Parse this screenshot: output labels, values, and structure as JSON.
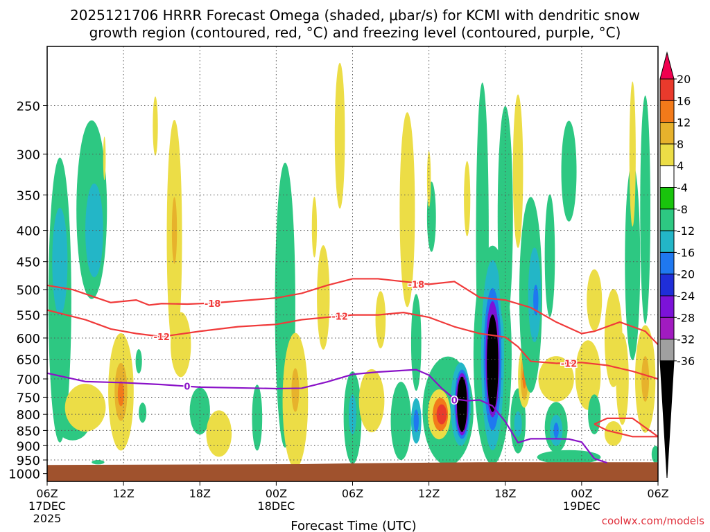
{
  "title_line1": "2025121706 HRRR Forecast Omega (shaded, μbar/s) for KCMI with dendritic snow",
  "title_line2": "growth region (contoured, red, °C) and freezing level (contoured, purple, °C)",
  "xlabel": "Forecast Time (UTC)",
  "credit": "coolwx.com/models",
  "chart_data": {
    "type": "heatmap",
    "x_unit": "forecast hour",
    "x_range": [
      0,
      48
    ],
    "y_unit": "hPa",
    "y_range": [
      200,
      1030
    ],
    "y_ticks": [
      {
        "p": 250,
        "label": "250"
      },
      {
        "p": 300,
        "label": "300"
      },
      {
        "p": 350,
        "label": "350"
      },
      {
        "p": 400,
        "label": "400"
      },
      {
        "p": 450,
        "label": "450"
      },
      {
        "p": 500,
        "label": "500"
      },
      {
        "p": 550,
        "label": "550"
      },
      {
        "p": 600,
        "label": "600"
      },
      {
        "p": 650,
        "label": "650"
      },
      {
        "p": 700,
        "label": "700"
      },
      {
        "p": 750,
        "label": "750"
      },
      {
        "p": 800,
        "label": "800"
      },
      {
        "p": 850,
        "label": "850"
      },
      {
        "p": 900,
        "label": "900"
      },
      {
        "p": 950,
        "label": "950"
      },
      {
        "p": 1000,
        "label": "1000"
      }
    ],
    "x_ticks": [
      {
        "h": 0,
        "label": "06Z",
        "sub": "17DEC",
        "sub2": "2025"
      },
      {
        "h": 6,
        "label": "12Z"
      },
      {
        "h": 12,
        "label": "18Z"
      },
      {
        "h": 18,
        "label": "00Z",
        "sub": "18DEC"
      },
      {
        "h": 24,
        "label": "06Z"
      },
      {
        "h": 30,
        "label": "12Z"
      },
      {
        "h": 36,
        "label": "18Z"
      },
      {
        "h": 42,
        "label": "00Z",
        "sub": "19DEC"
      },
      {
        "h": 48,
        "label": "06Z"
      }
    ],
    "colorbar": {
      "levels": [
        "20",
        "16",
        "12",
        "8",
        "4",
        "-4",
        "-8",
        "-12",
        "-16",
        "-20",
        "-24",
        "-28",
        "-32",
        "-36"
      ],
      "colors": [
        "#f0004f",
        "#e93a2c",
        "#f27a1a",
        "#e7b22c",
        "#ecdd46",
        "#ffffff",
        "#19c40c",
        "#2dc882",
        "#23b6c7",
        "#1f78f0",
        "#1f2ed8",
        "#7c12d8",
        "#a11bc0",
        "#a0a0a0",
        "#000000"
      ]
    },
    "ground": {
      "surface_pressure_hPa": [
        [
          0,
          968
        ],
        [
          20,
          965
        ],
        [
          24,
          962
        ],
        [
          34,
          958
        ],
        [
          40,
          958
        ],
        [
          48,
          958
        ]
      ],
      "color": "#a0522d"
    },
    "freezing_level": {
      "label": "0",
      "color": "#8a12c8",
      "points": [
        [
          0,
          685
        ],
        [
          3,
          707
        ],
        [
          6,
          710
        ],
        [
          9,
          715
        ],
        [
          12,
          722
        ],
        [
          15,
          724
        ],
        [
          18,
          726
        ],
        [
          20,
          725
        ],
        [
          22,
          708
        ],
        [
          24,
          688
        ],
        [
          26,
          682
        ],
        [
          28,
          678
        ],
        [
          29,
          676
        ],
        [
          30,
          690
        ],
        [
          31,
          725
        ],
        [
          32,
          755
        ],
        [
          33,
          760
        ],
        [
          34,
          758
        ],
        [
          35,
          775
        ],
        [
          36,
          822
        ],
        [
          37,
          890
        ],
        [
          38,
          877
        ],
        [
          40,
          877
        ],
        [
          41,
          878
        ],
        [
          42,
          888
        ],
        [
          43,
          945
        ],
        [
          44,
          960
        ]
      ],
      "label_at": [
        [
          11,
          719
        ],
        [
          32,
          758
        ]
      ]
    },
    "isotherms": [
      {
        "label": "-18",
        "color": "#f03a3a",
        "points": [
          [
            0,
            492
          ],
          [
            2,
            500
          ],
          [
            5,
            525
          ],
          [
            7,
            520
          ],
          [
            8,
            530
          ],
          [
            9,
            527
          ],
          [
            11,
            528
          ],
          [
            13,
            526
          ],
          [
            16,
            520
          ],
          [
            18,
            516
          ],
          [
            20,
            507
          ],
          [
            22,
            492
          ],
          [
            24,
            480
          ],
          [
            26,
            480
          ],
          [
            28,
            485
          ],
          [
            30,
            490
          ],
          [
            32,
            485
          ],
          [
            34,
            515
          ],
          [
            36,
            520
          ],
          [
            38,
            535
          ],
          [
            40,
            565
          ],
          [
            42,
            590
          ],
          [
            43,
            585
          ],
          [
            45,
            565
          ],
          [
            47,
            585
          ],
          [
            48,
            615
          ]
        ],
        "label_at": [
          [
            13,
            527
          ],
          [
            29,
            490
          ]
        ]
      },
      {
        "label": "-12",
        "color": "#f03a3a",
        "points": [
          [
            0,
            540
          ],
          [
            3,
            560
          ],
          [
            5,
            580
          ],
          [
            7,
            590
          ],
          [
            9,
            597
          ],
          [
            12,
            585
          ],
          [
            15,
            575
          ],
          [
            18,
            570
          ],
          [
            20,
            560
          ],
          [
            22,
            555
          ],
          [
            24,
            550
          ],
          [
            26,
            550
          ],
          [
            28,
            545
          ],
          [
            30,
            555
          ],
          [
            32,
            575
          ],
          [
            34,
            590
          ],
          [
            36,
            598
          ],
          [
            37,
            620
          ],
          [
            38,
            655
          ],
          [
            40,
            660
          ],
          [
            42,
            658
          ],
          [
            44,
            665
          ],
          [
            46,
            680
          ],
          [
            48,
            700
          ]
        ],
        "label_at": [
          [
            9,
            597
          ],
          [
            23,
            553
          ],
          [
            41,
            660
          ]
        ]
      },
      {
        "label": "",
        "color": "#f03a3a",
        "points": [
          [
            43,
            830
          ],
          [
            44,
            812
          ],
          [
            46,
            812
          ],
          [
            48,
            870
          ]
        ]
      },
      {
        "label": "",
        "color": "#f03a3a",
        "points": [
          [
            43,
            830
          ],
          [
            44,
            850
          ],
          [
            46,
            870
          ],
          [
            48,
            870
          ]
        ]
      }
    ],
    "omega_blobs": [
      {
        "value": -8,
        "h": 1.0,
        "p": 520,
        "rh": 0.9,
        "rp": 255
      },
      {
        "value": -12,
        "h": 1.0,
        "p": 450,
        "rh": 0.6,
        "rp": 90
      },
      {
        "value": -8,
        "h": 3.5,
        "p": 370,
        "rh": 1.2,
        "rp": 120
      },
      {
        "value": -12,
        "h": 3.7,
        "p": 400,
        "rh": 0.7,
        "rp": 70
      },
      {
        "value": -8,
        "h": 2.0,
        "p": 820,
        "rh": 1.4,
        "rp": 60
      },
      {
        "value": 4,
        "h": 3.0,
        "p": 780,
        "rh": 1.6,
        "rp": 70
      },
      {
        "value": 4,
        "h": 5.8,
        "p": 735,
        "rh": 1.0,
        "rp": 160
      },
      {
        "value": 8,
        "h": 5.8,
        "p": 735,
        "rh": 0.5,
        "rp": 80
      },
      {
        "value": 12,
        "h": 5.8,
        "p": 740,
        "rh": 0.25,
        "rp": 35
      },
      {
        "value": 4,
        "h": 8.5,
        "p": 270,
        "rh": 0.2,
        "rp": 30
      },
      {
        "value": 4,
        "h": 4.5,
        "p": 305,
        "rh": 0.1,
        "rp": 25
      },
      {
        "value": -8,
        "h": 7.2,
        "p": 655,
        "rh": 0.25,
        "rp": 30
      },
      {
        "value": -8,
        "h": 7.5,
        "p": 795,
        "rh": 0.3,
        "rp": 30
      },
      {
        "value": 4,
        "h": 10.0,
        "p": 410,
        "rh": 0.6,
        "rp": 170
      },
      {
        "value": 8,
        "h": 10.0,
        "p": 400,
        "rh": 0.2,
        "rp": 50
      },
      {
        "value": 4,
        "h": 10.5,
        "p": 615,
        "rh": 0.8,
        "rp": 75
      },
      {
        "value": -8,
        "h": 12.0,
        "p": 790,
        "rh": 0.8,
        "rp": 70
      },
      {
        "value": 4,
        "h": 13.5,
        "p": 860,
        "rh": 1.0,
        "rp": 75
      },
      {
        "value": -8,
        "h": 16.5,
        "p": 810,
        "rh": 0.4,
        "rp": 100
      },
      {
        "value": -8,
        "h": 18.7,
        "p": 530,
        "rh": 0.8,
        "rp": 260
      },
      {
        "value": 4,
        "h": 19.5,
        "p": 760,
        "rh": 1.0,
        "rp": 190
      },
      {
        "value": 8,
        "h": 19.5,
        "p": 730,
        "rh": 0.3,
        "rp": 60
      },
      {
        "value": 4,
        "h": 21.0,
        "p": 395,
        "rh": 0.2,
        "rp": 45
      },
      {
        "value": 4,
        "h": 21.7,
        "p": 515,
        "rh": 0.5,
        "rp": 100
      },
      {
        "value": 4,
        "h": 23.0,
        "p": 280,
        "rh": 0.4,
        "rp": 75
      },
      {
        "value": -8,
        "h": 24.0,
        "p": 810,
        "rh": 0.7,
        "rp": 140
      },
      {
        "value": -12,
        "h": 24.0,
        "p": 800,
        "rh": 0.3,
        "rp": 60
      },
      {
        "value": 4,
        "h": 25.5,
        "p": 760,
        "rh": 1.0,
        "rp": 90
      },
      {
        "value": 4,
        "h": 26.2,
        "p": 560,
        "rh": 0.4,
        "rp": 60
      },
      {
        "value": 4,
        "h": 28.3,
        "p": 370,
        "rh": 0.6,
        "rp": 130
      },
      {
        "value": -8,
        "h": 27.8,
        "p": 820,
        "rh": 0.8,
        "rp": 120
      },
      {
        "value": -8,
        "h": 29.0,
        "p": 610,
        "rh": 0.4,
        "rp": 110
      },
      {
        "value": -12,
        "h": 29.0,
        "p": 820,
        "rh": 0.4,
        "rp": 70
      },
      {
        "value": -16,
        "h": 29.0,
        "p": 820,
        "rh": 0.2,
        "rp": 35
      },
      {
        "value": -8,
        "h": 31.5,
        "p": 790,
        "rh": 2.0,
        "rp": 160
      },
      {
        "value": -8,
        "h": 30.2,
        "p": 380,
        "rh": 0.35,
        "rp": 50
      },
      {
        "value": 4,
        "h": 30.0,
        "p": 330,
        "rh": 0.15,
        "rp": 35
      },
      {
        "value": 4,
        "h": 30.8,
        "p": 800,
        "rh": 0.9,
        "rp": 75
      },
      {
        "value": 12,
        "h": 30.9,
        "p": 800,
        "rh": 0.6,
        "rp": 50
      },
      {
        "value": 16,
        "h": 31.0,
        "p": 800,
        "rh": 0.4,
        "rp": 30
      },
      {
        "value": -12,
        "h": 32.5,
        "p": 770,
        "rh": 0.8,
        "rp": 120
      },
      {
        "value": -16,
        "h": 32.6,
        "p": 770,
        "rh": 0.6,
        "rp": 100
      },
      {
        "value": -24,
        "h": 32.6,
        "p": 770,
        "rh": 0.5,
        "rp": 90
      },
      {
        "value": -36,
        "h": 32.6,
        "p": 770,
        "rh": 0.4,
        "rp": 80
      },
      {
        "value": 4,
        "h": 33.0,
        "p": 355,
        "rh": 0.25,
        "rp": 50
      },
      {
        "value": -8,
        "h": 34.2,
        "p": 410,
        "rh": 0.5,
        "rp": 230
      },
      {
        "value": -8,
        "h": 35.0,
        "p": 640,
        "rh": 1.5,
        "rp": 250
      },
      {
        "value": -12,
        "h": 35.0,
        "p": 640,
        "rh": 0.9,
        "rp": 220
      },
      {
        "value": -16,
        "h": 35.0,
        "p": 650,
        "rh": 0.7,
        "rp": 170
      },
      {
        "value": -24,
        "h": 35.0,
        "p": 650,
        "rh": 0.55,
        "rp": 140
      },
      {
        "value": -36,
        "h": 35.0,
        "p": 660,
        "rh": 0.45,
        "rp": 120
      },
      {
        "value": -8,
        "h": 36.0,
        "p": 380,
        "rh": 0.6,
        "rp": 150
      },
      {
        "value": 4,
        "h": 37.0,
        "p": 320,
        "rh": 0.4,
        "rp": 90
      },
      {
        "value": -8,
        "h": 37.0,
        "p": 820,
        "rh": 0.6,
        "rp": 100
      },
      {
        "value": -12,
        "h": 37.0,
        "p": 830,
        "rh": 0.3,
        "rp": 40
      },
      {
        "value": 4,
        "h": 37.5,
        "p": 695,
        "rh": 0.5,
        "rp": 80
      },
      {
        "value": 8,
        "h": 37.5,
        "p": 695,
        "rh": 0.3,
        "rp": 60
      },
      {
        "value": 12,
        "h": 37.5,
        "p": 695,
        "rh": 0.15,
        "rp": 30
      },
      {
        "value": -8,
        "h": 38.0,
        "p": 510,
        "rh": 0.9,
        "rp": 180
      },
      {
        "value": -12,
        "h": 38.3,
        "p": 510,
        "rh": 0.5,
        "rp": 90
      },
      {
        "value": -16,
        "h": 38.4,
        "p": 520,
        "rh": 0.2,
        "rp": 30
      },
      {
        "value": -8,
        "h": 39.5,
        "p": 440,
        "rh": 0.4,
        "rp": 100
      },
      {
        "value": 4,
        "h": 40.0,
        "p": 700,
        "rh": 1.4,
        "rp": 60
      },
      {
        "value": -8,
        "h": 40.0,
        "p": 840,
        "rh": 0.9,
        "rp": 80
      },
      {
        "value": -12,
        "h": 40.0,
        "p": 850,
        "rh": 0.5,
        "rp": 50
      },
      {
        "value": -16,
        "h": 40.0,
        "p": 850,
        "rh": 0.2,
        "rp": 25
      },
      {
        "value": -8,
        "h": 41.0,
        "p": 320,
        "rh": 0.6,
        "rp": 60
      },
      {
        "value": 4,
        "h": 42.5,
        "p": 690,
        "rh": 1.0,
        "rp": 90
      },
      {
        "value": 4,
        "h": 43.0,
        "p": 520,
        "rh": 0.6,
        "rp": 60
      },
      {
        "value": -8,
        "h": 43.0,
        "p": 800,
        "rh": 0.5,
        "rp": 60
      },
      {
        "value": 4,
        "h": 44.5,
        "p": 600,
        "rh": 0.7,
        "rp": 110
      },
      {
        "value": 4,
        "h": 45.2,
        "p": 700,
        "rh": 0.5,
        "rp": 120
      },
      {
        "value": 4,
        "h": 44.5,
        "p": 860,
        "rh": 0.7,
        "rp": 40
      },
      {
        "value": -8,
        "h": 46.0,
        "p": 450,
        "rh": 0.6,
        "rp": 160
      },
      {
        "value": 4,
        "h": 47.0,
        "p": 700,
        "rh": 0.8,
        "rp": 140
      },
      {
        "value": 8,
        "h": 47.0,
        "p": 700,
        "rh": 0.3,
        "rp": 60
      },
      {
        "value": -8,
        "h": 47.0,
        "p": 370,
        "rh": 0.4,
        "rp": 150
      },
      {
        "value": 4,
        "h": 46.0,
        "p": 300,
        "rh": 0.25,
        "rp": 80
      },
      {
        "value": -8,
        "h": 47.8,
        "p": 930,
        "rh": 0.3,
        "rp": 30
      },
      {
        "value": -8,
        "h": 4.0,
        "p": 958,
        "rh": 0.5,
        "rp": 8
      },
      {
        "value": -8,
        "h": 41.0,
        "p": 940,
        "rh": 2.5,
        "rp": 25
      }
    ]
  }
}
